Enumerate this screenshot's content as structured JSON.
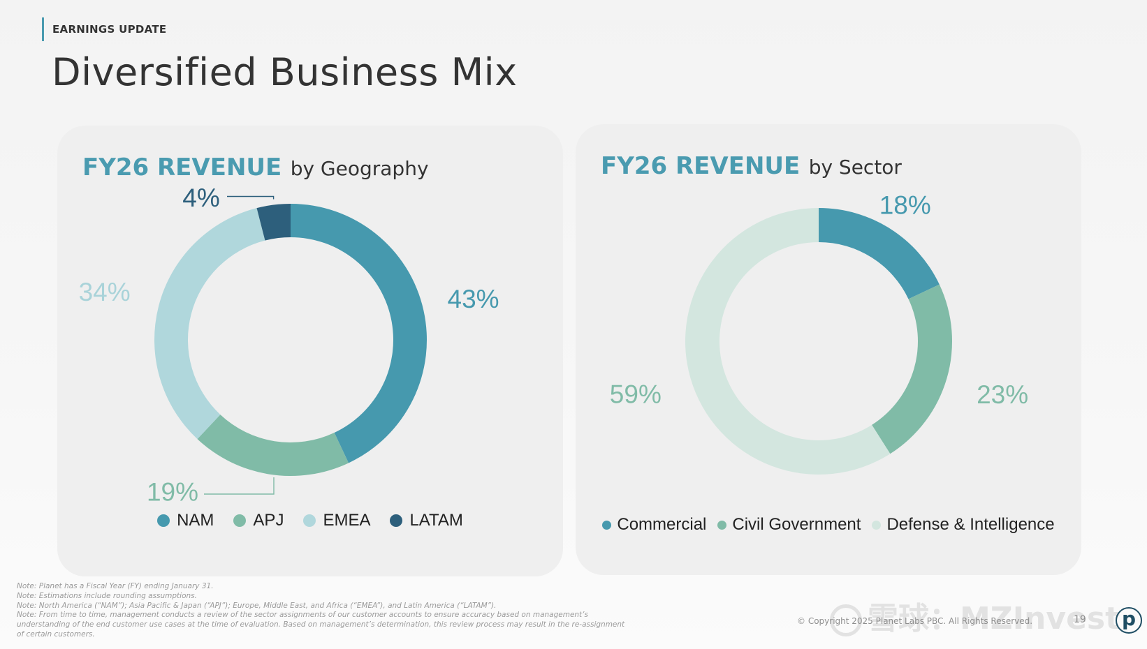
{
  "header": {
    "kicker": "EARNINGS UPDATE",
    "title": "Diversified Business Mix"
  },
  "colors": {
    "teal": "#4699ae",
    "green": "#80bba7",
    "light_blue": "#b0d7dc",
    "navy": "#2d5f7c",
    "pale_green": "#d3e6df",
    "title_accent": "#4a9bb0"
  },
  "chart_data": [
    {
      "type": "pie",
      "title": "FY26 REVENUE",
      "subtitle": "by Geography",
      "categories": [
        "NAM",
        "APJ",
        "EMEA",
        "LATAM"
      ],
      "values": [
        43,
        19,
        34,
        4
      ],
      "value_labels": [
        "43%",
        "19%",
        "34%",
        "4%"
      ],
      "colors": [
        "#4699ae",
        "#80bba7",
        "#b0d7dc",
        "#2d5f7c"
      ],
      "label_colors": [
        "#4699ae",
        "#80bba7",
        "#a9d3d9",
        "#2d5f7c"
      ],
      "donut": true,
      "legend_position": "bottom",
      "start": "top",
      "direction": "clockwise"
    },
    {
      "type": "pie",
      "title": "FY26 REVENUE",
      "subtitle": "by Sector",
      "categories": [
        "Commercial",
        "Civil Government",
        "Defense & Intelligence"
      ],
      "values": [
        18,
        23,
        59
      ],
      "value_labels": [
        "18%",
        "23%",
        "59%"
      ],
      "colors": [
        "#4699ae",
        "#80bba7",
        "#d3e6df"
      ],
      "label_colors": [
        "#4699ae",
        "#80bba7",
        "#80bba7"
      ],
      "donut": true,
      "legend_position": "bottom",
      "start": "top",
      "direction": "clockwise"
    }
  ],
  "notes": [
    "Note: Planet has a Fiscal Year (FY) ending January 31.",
    "Note: Estimations include rounding assumptions.",
    "Note: North America (“NAM”);  Asia Pacific & Japan (“APJ”); Europe, Middle East, and Africa (“EMEA”), and Latin America (“LATAM”).",
    "Note:  From time to time, management conducts a review of the sector assignments of our customer accounts to ensure accuracy based on management’s",
    "understanding of the end customer use cases at the time of evaluation. Based on management’s determination, this review process may result in the re-assignment",
    "of certain customers."
  ],
  "footer": {
    "copyright": "© Copyright 2025 Planet Labs PBC. All Rights Reserved.",
    "page_number": "19",
    "logo_letter": "p",
    "watermark": "雪球：MZInvest"
  }
}
